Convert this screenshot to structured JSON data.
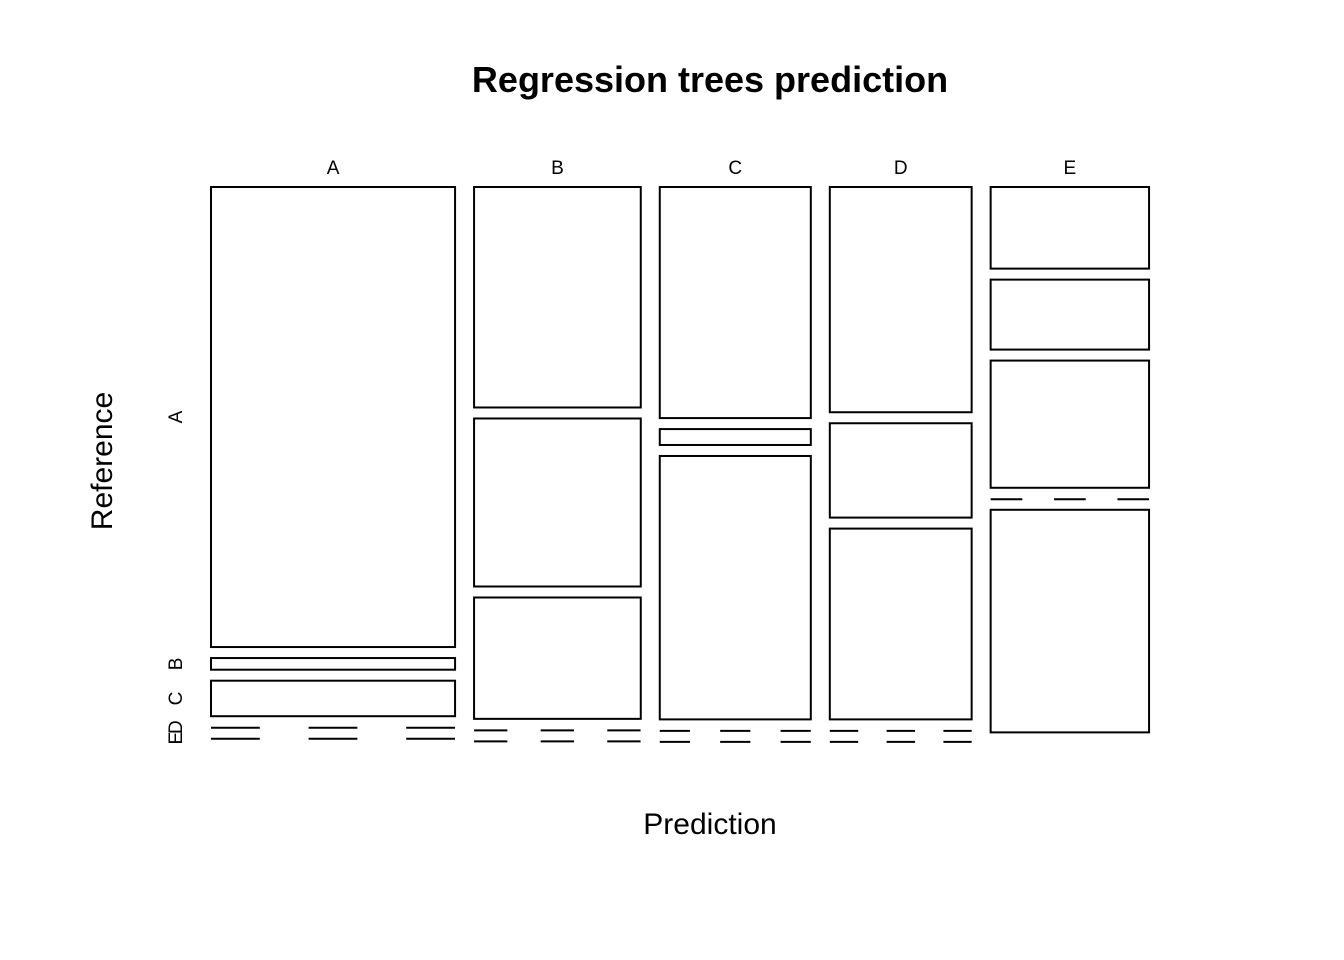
{
  "chart_data": {
    "type": "mosaic",
    "title": "Regression trees prediction",
    "xlabel": "Prediction",
    "ylabel": "Reference",
    "x_categories": [
      "A",
      "B",
      "C",
      "D",
      "E"
    ],
    "y_categories": [
      "A",
      "B",
      "C",
      "D",
      "E"
    ],
    "column_proportions": [
      0.265,
      0.181,
      0.164,
      0.154,
      0.172
    ],
    "cells": [
      {
        "prediction": "A",
        "proportions": {
          "A": 0.868,
          "B": 0.022,
          "C": 0.067,
          "D": 0.0,
          "E": 0.0
        }
      },
      {
        "prediction": "B",
        "proportions": {
          "A": 0.416,
          "B": 0.317,
          "C": 0.229,
          "D": 0.0,
          "E": 0.0
        }
      },
      {
        "prediction": "C",
        "proportions": {
          "A": 0.436,
          "B": 0.03,
          "C": 0.497,
          "D": 0.0,
          "E": 0.0
        }
      },
      {
        "prediction": "D",
        "proportions": {
          "A": 0.425,
          "B": 0.178,
          "C": 0.36,
          "D": 0.0,
          "E": 0.0
        }
      },
      {
        "prediction": "E",
        "proportions": {
          "A": 0.154,
          "B": 0.132,
          "C": 0.24,
          "D": 0.0,
          "E": 0.42
        }
      }
    ],
    "grid": false,
    "legend": "none",
    "colors": {
      "tile_fill": "#ffffff",
      "tile_stroke": "#000000",
      "text": "#000000"
    }
  }
}
